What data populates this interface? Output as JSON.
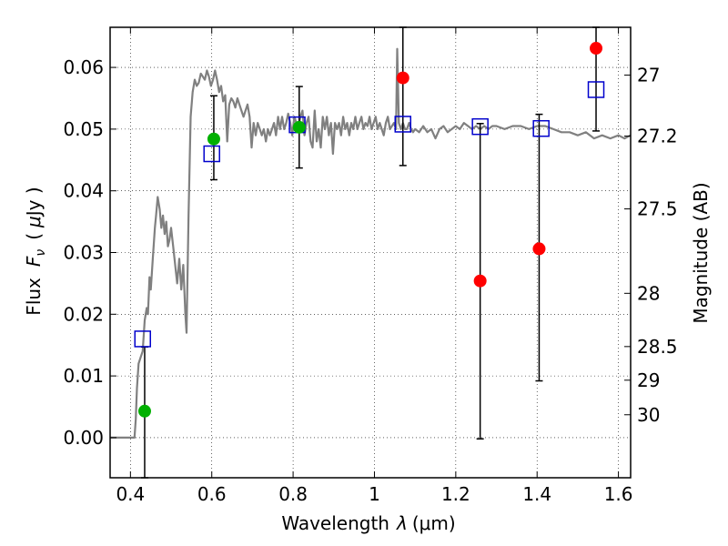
{
  "chart_data": {
    "type": "scatter",
    "x_axis": {
      "label_text": "Wavelength",
      "label_symbol": "λ",
      "label_unit": "(μm)",
      "range": [
        0.35,
        1.63
      ],
      "ticks": [
        0.4,
        0.6,
        0.8,
        1.0,
        1.2,
        1.4,
        1.6
      ],
      "tick_labels": [
        "0.4",
        "0.6",
        "0.8",
        "1",
        "1.2",
        "1.4",
        "1.6"
      ]
    },
    "y_axis_left": {
      "label_text": "Flux",
      "label_symbol": "F",
      "label_subscript": "ν",
      "label_unit_open": "(",
      "label_unit_mu": "μ",
      "label_unit_rest": "Jy )",
      "range": [
        -0.0065,
        0.0665
      ],
      "ticks": [
        0.0,
        0.01,
        0.02,
        0.03,
        0.04,
        0.05,
        0.06
      ],
      "tick_labels": [
        "0.00",
        "0.01",
        "0.02",
        "0.03",
        "0.04",
        "0.05",
        "0.06"
      ]
    },
    "y_axis_right": {
      "label": "Magnitude (AB)",
      "ticks": [
        {
          "label": "27",
          "flux": 0.05875
        },
        {
          "label": "27.2",
          "flux": 0.04887
        },
        {
          "label": "27.5",
          "flux": 0.03707
        },
        {
          "label": "28",
          "flux": 0.02339
        },
        {
          "label": "28.5",
          "flux": 0.01476
        },
        {
          "label": "29",
          "flux": 0.00931
        },
        {
          "label": "30",
          "flux": 0.00371
        }
      ]
    },
    "grid": true,
    "model_spectrum": {
      "color": "#808080",
      "points": [
        [
          0.35,
          0.0
        ],
        [
          0.39,
          0.0
        ],
        [
          0.41,
          0.0
        ],
        [
          0.413,
          0.003
        ],
        [
          0.416,
          0.008
        ],
        [
          0.42,
          0.012
        ],
        [
          0.425,
          0.013
        ],
        [
          0.43,
          0.014
        ],
        [
          0.435,
          0.019
        ],
        [
          0.44,
          0.021
        ],
        [
          0.443,
          0.02
        ],
        [
          0.447,
          0.026
        ],
        [
          0.45,
          0.024
        ],
        [
          0.455,
          0.029
        ],
        [
          0.46,
          0.034
        ],
        [
          0.463,
          0.036
        ],
        [
          0.467,
          0.039
        ],
        [
          0.472,
          0.037
        ],
        [
          0.476,
          0.034
        ],
        [
          0.48,
          0.036
        ],
        [
          0.484,
          0.033
        ],
        [
          0.488,
          0.035
        ],
        [
          0.492,
          0.031
        ],
        [
          0.496,
          0.032
        ],
        [
          0.5,
          0.034
        ],
        [
          0.505,
          0.031
        ],
        [
          0.51,
          0.028
        ],
        [
          0.515,
          0.025
        ],
        [
          0.52,
          0.029
        ],
        [
          0.525,
          0.024
        ],
        [
          0.53,
          0.028
        ],
        [
          0.535,
          0.02
        ],
        [
          0.538,
          0.017
        ],
        [
          0.543,
          0.036
        ],
        [
          0.548,
          0.052
        ],
        [
          0.553,
          0.056
        ],
        [
          0.558,
          0.058
        ],
        [
          0.563,
          0.057
        ],
        [
          0.568,
          0.0575
        ],
        [
          0.573,
          0.059
        ],
        [
          0.578,
          0.0585
        ],
        [
          0.583,
          0.058
        ],
        [
          0.588,
          0.0595
        ],
        [
          0.593,
          0.0585
        ],
        [
          0.598,
          0.057
        ],
        [
          0.603,
          0.058
        ],
        [
          0.608,
          0.0595
        ],
        [
          0.613,
          0.058
        ],
        [
          0.618,
          0.056
        ],
        [
          0.623,
          0.057
        ],
        [
          0.628,
          0.0545
        ],
        [
          0.633,
          0.0555
        ],
        [
          0.638,
          0.048
        ],
        [
          0.643,
          0.054
        ],
        [
          0.648,
          0.055
        ],
        [
          0.653,
          0.0545
        ],
        [
          0.658,
          0.0535
        ],
        [
          0.663,
          0.055
        ],
        [
          0.668,
          0.054
        ],
        [
          0.673,
          0.053
        ],
        [
          0.678,
          0.052
        ],
        [
          0.683,
          0.053
        ],
        [
          0.688,
          0.054
        ],
        [
          0.693,
          0.052
        ],
        [
          0.698,
          0.047
        ],
        [
          0.703,
          0.051
        ],
        [
          0.708,
          0.049
        ],
        [
          0.713,
          0.051
        ],
        [
          0.718,
          0.05
        ],
        [
          0.723,
          0.049
        ],
        [
          0.728,
          0.05
        ],
        [
          0.733,
          0.048
        ],
        [
          0.738,
          0.05
        ],
        [
          0.743,
          0.049
        ],
        [
          0.748,
          0.05
        ],
        [
          0.753,
          0.051
        ],
        [
          0.758,
          0.049
        ],
        [
          0.763,
          0.052
        ],
        [
          0.768,
          0.05
        ],
        [
          0.773,
          0.052
        ],
        [
          0.778,
          0.05
        ],
        [
          0.783,
          0.051
        ],
        [
          0.788,
          0.0525
        ],
        [
          0.793,
          0.051
        ],
        [
          0.798,
          0.049
        ],
        [
          0.803,
          0.052
        ],
        [
          0.808,
          0.051
        ],
        [
          0.813,
          0.05
        ],
        [
          0.818,
          0.052
        ],
        [
          0.823,
          0.053
        ],
        [
          0.828,
          0.049
        ],
        [
          0.833,
          0.051
        ],
        [
          0.838,
          0.052
        ],
        [
          0.843,
          0.048
        ],
        [
          0.848,
          0.047
        ],
        [
          0.853,
          0.053
        ],
        [
          0.858,
          0.048
        ],
        [
          0.863,
          0.05
        ],
        [
          0.868,
          0.047
        ],
        [
          0.873,
          0.052
        ],
        [
          0.878,
          0.05
        ],
        [
          0.883,
          0.052
        ],
        [
          0.888,
          0.049
        ],
        [
          0.893,
          0.051
        ],
        [
          0.898,
          0.046
        ],
        [
          0.903,
          0.051
        ],
        [
          0.908,
          0.05
        ],
        [
          0.913,
          0.051
        ],
        [
          0.918,
          0.049
        ],
        [
          0.923,
          0.052
        ],
        [
          0.928,
          0.05
        ],
        [
          0.933,
          0.051
        ],
        [
          0.938,
          0.049
        ],
        [
          0.943,
          0.051
        ],
        [
          0.948,
          0.05
        ],
        [
          0.953,
          0.052
        ],
        [
          0.958,
          0.05
        ],
        [
          0.963,
          0.051
        ],
        [
          0.968,
          0.052
        ],
        [
          0.973,
          0.05
        ],
        [
          0.978,
          0.051
        ],
        [
          0.983,
          0.0505
        ],
        [
          0.988,
          0.052
        ],
        [
          0.993,
          0.05
        ],
        [
          0.998,
          0.051
        ],
        [
          1.003,
          0.052
        ],
        [
          1.008,
          0.05
        ],
        [
          1.013,
          0.051
        ],
        [
          1.018,
          0.05
        ],
        [
          1.023,
          0.049
        ],
        [
          1.028,
          0.051
        ],
        [
          1.033,
          0.052
        ],
        [
          1.038,
          0.05
        ],
        [
          1.043,
          0.0505
        ],
        [
          1.048,
          0.051
        ],
        [
          1.053,
          0.05
        ],
        [
          1.056,
          0.063
        ],
        [
          1.06,
          0.051
        ],
        [
          1.065,
          0.05
        ],
        [
          1.07,
          0.051
        ],
        [
          1.075,
          0.05
        ],
        [
          1.08,
          0.05
        ],
        [
          1.085,
          0.051
        ],
        [
          1.09,
          0.05
        ],
        [
          1.095,
          0.0495
        ],
        [
          1.1,
          0.05
        ],
        [
          1.11,
          0.0495
        ],
        [
          1.12,
          0.0505
        ],
        [
          1.13,
          0.0495
        ],
        [
          1.14,
          0.05
        ],
        [
          1.15,
          0.0485
        ],
        [
          1.16,
          0.05
        ],
        [
          1.17,
          0.0505
        ],
        [
          1.18,
          0.0495
        ],
        [
          1.19,
          0.05
        ],
        [
          1.2,
          0.0505
        ],
        [
          1.21,
          0.05
        ],
        [
          1.22,
          0.051
        ],
        [
          1.23,
          0.0505
        ],
        [
          1.24,
          0.05
        ],
        [
          1.25,
          0.0505
        ],
        [
          1.26,
          0.05
        ],
        [
          1.27,
          0.0505
        ],
        [
          1.28,
          0.05
        ],
        [
          1.29,
          0.0505
        ],
        [
          1.3,
          0.0505
        ],
        [
          1.32,
          0.05
        ],
        [
          1.34,
          0.0505
        ],
        [
          1.36,
          0.0505
        ],
        [
          1.38,
          0.05
        ],
        [
          1.4,
          0.0505
        ],
        [
          1.42,
          0.0505
        ],
        [
          1.44,
          0.05
        ],
        [
          1.46,
          0.0495
        ],
        [
          1.48,
          0.0495
        ],
        [
          1.5,
          0.049
        ],
        [
          1.52,
          0.0495
        ],
        [
          1.54,
          0.0485
        ],
        [
          1.56,
          0.049
        ],
        [
          1.58,
          0.0485
        ],
        [
          1.6,
          0.049
        ],
        [
          1.615,
          0.0485
        ],
        [
          1.63,
          0.049
        ]
      ]
    },
    "model_photometry": {
      "marker": "open-square",
      "color": "#0000cc",
      "points": [
        {
          "x": 0.43,
          "y": 0.016
        },
        {
          "x": 0.6,
          "y": 0.046
        },
        {
          "x": 0.81,
          "y": 0.0507
        },
        {
          "x": 1.07,
          "y": 0.0508
        },
        {
          "x": 1.26,
          "y": 0.0504
        },
        {
          "x": 1.41,
          "y": 0.0501
        },
        {
          "x": 1.545,
          "y": 0.0564
        }
      ]
    },
    "detections": {
      "marker": "filled-circle",
      "color": "#00b000",
      "points": [
        {
          "x": 0.435,
          "y": 0.0043,
          "err_low": -0.0065,
          "err_high": 0.0147
        },
        {
          "x": 0.605,
          "y": 0.0484,
          "err_low": 0.0418,
          "err_high": 0.0554
        },
        {
          "x": 0.815,
          "y": 0.0503,
          "err_low": 0.0437,
          "err_high": 0.0569
        }
      ]
    },
    "nondetections": {
      "marker": "filled-circle",
      "color": "#ff0000",
      "points": [
        {
          "x": 1.07,
          "y": 0.0583,
          "err_low": 0.0441,
          "err_high": 0.0665
        },
        {
          "x": 1.26,
          "y": 0.0254,
          "err_low": -0.0002,
          "err_high": 0.0509
        },
        {
          "x": 1.405,
          "y": 0.0306,
          "err_low": 0.0092,
          "err_high": 0.0524
        },
        {
          "x": 1.545,
          "y": 0.0631,
          "err_low": 0.0497,
          "err_high": 0.0665
        }
      ]
    }
  }
}
